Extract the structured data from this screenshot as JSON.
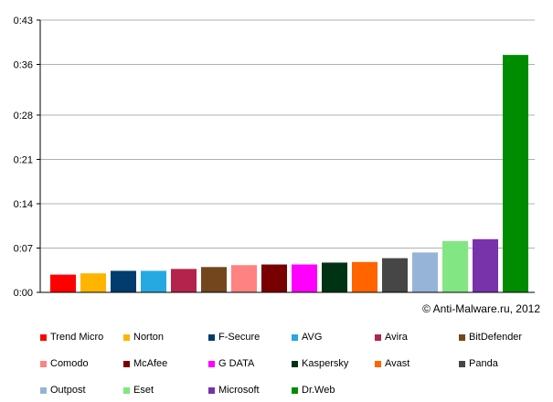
{
  "chart_data": {
    "type": "bar",
    "title": "",
    "xlabel": "",
    "ylabel": "",
    "ylim": [
      0,
      0.43
    ],
    "y_ticks": [
      "0:00",
      "0:07",
      "0:14",
      "0:21",
      "0:28",
      "0:36",
      "0:43"
    ],
    "y_tick_values": [
      0,
      0.07,
      0.14,
      0.21,
      0.28,
      0.36,
      0.43
    ],
    "grid": true,
    "legend_position": "bottom",
    "annotation": "© Anti-Malware.ru, 2012",
    "categories": [
      "Trend Micro",
      "Norton",
      "F-Secure",
      "AVG",
      "Avira",
      "BitDefender",
      "Comodo",
      "McAfee",
      "G DATA",
      "Kaspersky",
      "Avast",
      "Panda",
      "Outpost",
      "Eset",
      "Microsoft",
      "Dr.Web"
    ],
    "values": [
      0.028,
      0.03,
      0.034,
      0.034,
      0.037,
      0.04,
      0.043,
      0.044,
      0.044,
      0.047,
      0.048,
      0.054,
      0.063,
      0.081,
      0.084,
      0.375
    ],
    "colors": [
      "#ff0000",
      "#ffb400",
      "#003c6e",
      "#26a9e0",
      "#b4234b",
      "#73461e",
      "#ff8282",
      "#780000",
      "#ff00ff",
      "#003214",
      "#ff6400",
      "#464646",
      "#96b4d7",
      "#82e682",
      "#7832aa",
      "#008c00"
    ]
  }
}
